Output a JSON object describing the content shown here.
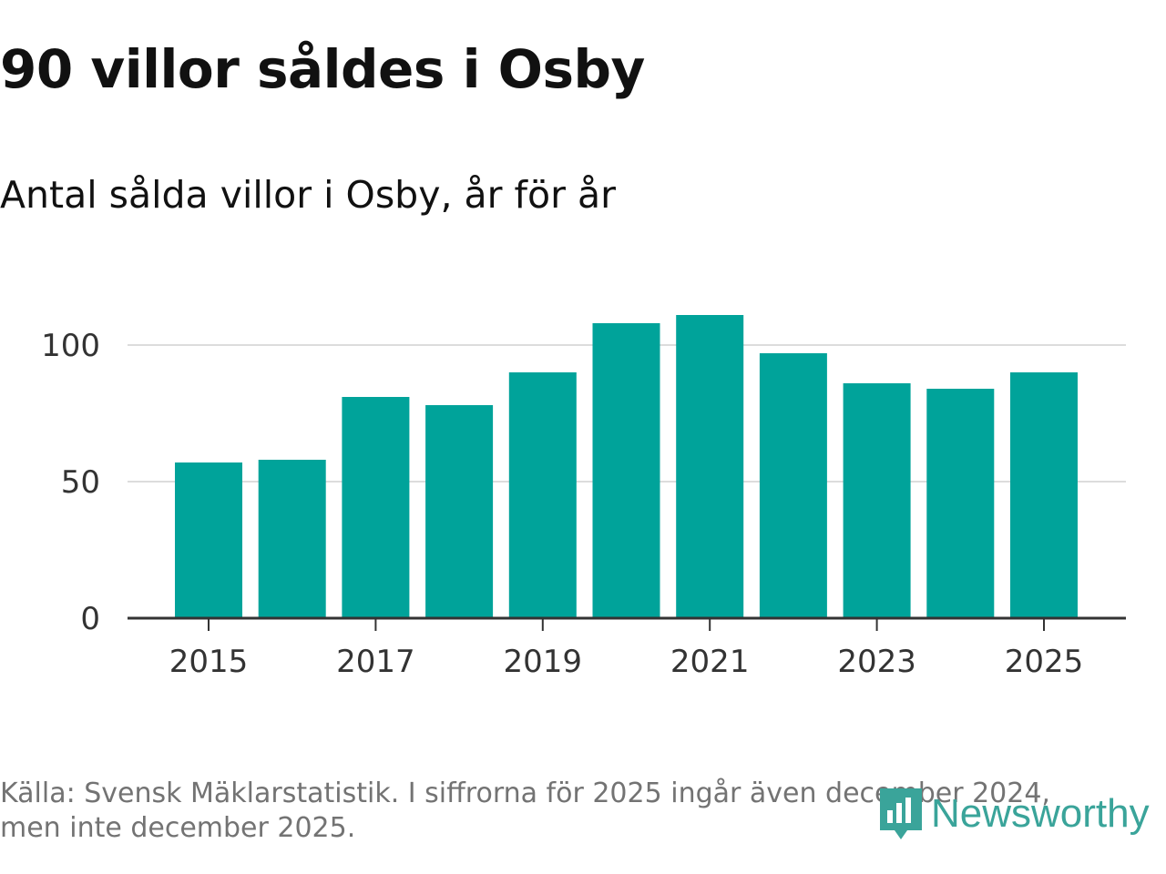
{
  "header": {
    "title": "90 villor såldes i Osby",
    "subtitle": "Antal sålda villor i Osby, år för år"
  },
  "footer": {
    "source_line1": "Källa: Svensk Mäklarstatistik. I siffrorna för 2025 ingår även december 2024,",
    "source_line2": "men inte december 2025.",
    "brand": "Newsworthy",
    "brand_icon": "newsworthy-logo-icon"
  },
  "colors": {
    "bar": "#00a39a",
    "grid": "#dcdcdc",
    "axis": "#333333",
    "tick_text": "#333333",
    "brand": "#3aa49a",
    "source_text": "#737373"
  },
  "chart_data": {
    "type": "bar",
    "title": "90 villor såldes i Osby",
    "subtitle": "Antal sålda villor i Osby, år för år",
    "xlabel": "",
    "ylabel": "",
    "categories": [
      "2015",
      "2016",
      "2017",
      "2018",
      "2019",
      "2020",
      "2021",
      "2022",
      "2023",
      "2024",
      "2025"
    ],
    "values": [
      57,
      58,
      81,
      78,
      90,
      108,
      111,
      97,
      86,
      84,
      90
    ],
    "x_tick_labels": [
      "2015",
      "2017",
      "2019",
      "2021",
      "2023",
      "2025"
    ],
    "y_ticks": [
      0,
      50,
      100
    ],
    "y_tick_labels": [
      "0",
      "50",
      "100"
    ],
    "ylim": [
      0,
      120
    ],
    "grid": true,
    "legend": "none"
  }
}
